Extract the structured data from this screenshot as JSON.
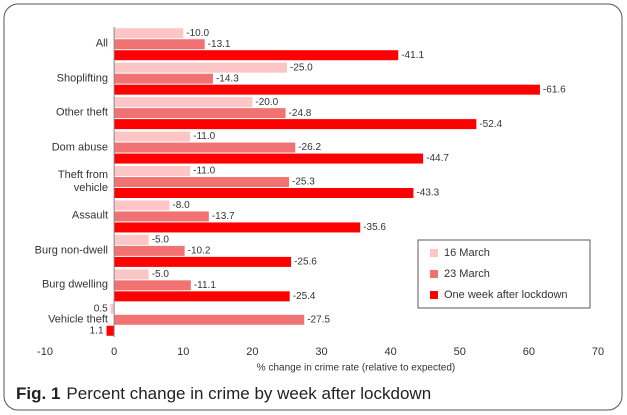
{
  "chart_data": {
    "type": "hbar",
    "caption_label": "Fig. 1",
    "title": "Percent change in crime by week after lockdown",
    "xlabel": "% change in crime rate (relative to expected)",
    "categories": [
      "All",
      "Shoplifting",
      "Other theft",
      "Dom abuse",
      "Theft from vehicle",
      "Assault",
      "Burg non-dwell",
      "Burg dwelling",
      "Vehicle theft"
    ],
    "series": [
      {
        "name": "16 March",
        "color": "#fcc6c6",
        "values": [
          10.0,
          25.0,
          20.0,
          11.0,
          11.0,
          8.0,
          5.0,
          5.0,
          -0.5
        ],
        "value_labels": [
          "-10.0",
          "-25.0",
          "-20.0",
          "-11.0",
          "-11.0",
          "-8.0",
          "-5.0",
          "-5.0",
          "0.5"
        ]
      },
      {
        "name": "23 March",
        "color": "#f07272",
        "values": [
          13.1,
          14.3,
          24.8,
          26.2,
          25.3,
          13.7,
          10.2,
          11.1,
          27.5
        ],
        "value_labels": [
          "-13.1",
          "-14.3",
          "-24.8",
          "-26.2",
          "-25.3",
          "-13.7",
          "-10.2",
          "-11.1",
          "-27.5"
        ]
      },
      {
        "name": "One week after lockdown",
        "color": "#ff0000",
        "values": [
          41.1,
          61.6,
          52.4,
          44.7,
          43.3,
          35.6,
          25.6,
          25.4,
          -1.1
        ],
        "value_labels": [
          "-41.1",
          "-61.6",
          "-52.4",
          "-44.7",
          "-43.3",
          "-35.6",
          "-25.6",
          "-25.4",
          "1.1"
        ]
      }
    ],
    "xlim": [
      -10,
      70
    ],
    "xticks": [
      -10,
      0,
      10,
      20,
      30,
      40,
      50,
      60,
      70
    ],
    "legend": "lower right",
    "grid": false
  }
}
